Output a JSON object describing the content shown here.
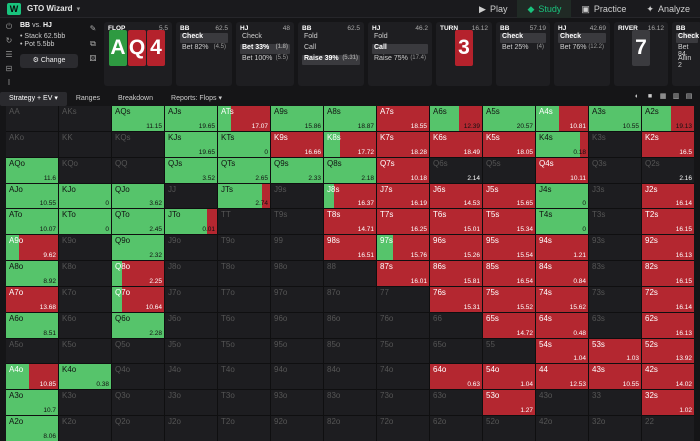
{
  "app": {
    "title": "GTO Wizard"
  },
  "nav": [
    {
      "label": "Play",
      "icon": "play-icon"
    },
    {
      "label": "Study",
      "icon": "study-icon",
      "active": true
    },
    {
      "label": "Practice",
      "icon": "practice-icon"
    },
    {
      "label": "Analyze",
      "icon": "analyze-icon"
    }
  ],
  "scenario": {
    "title_a": "BB",
    "title_vs": "vs.",
    "title_b": "HJ",
    "stack": "• Stack 62.5bb",
    "pot": "• Pot 5.5bb",
    "change_label": "Change"
  },
  "action_cards": [
    {
      "pos": "FLOP",
      "amount": "5.5"
    },
    {
      "pos": "BB",
      "amount": "62.5",
      "opts": [
        [
          "Check",
          ""
        ],
        [
          "Bet 82%",
          "(4.5)"
        ]
      ],
      "sel": 0
    },
    {
      "pos": "HJ",
      "amount": "48",
      "opts": [
        [
          "Check",
          ""
        ],
        [
          "Bet 33%",
          "(1.8)"
        ],
        [
          "Bet 100%",
          "(5.5)"
        ]
      ],
      "sel": 1
    },
    {
      "pos": "BB",
      "amount": "62.5",
      "opts": [
        [
          "Fold",
          ""
        ],
        [
          "Call",
          ""
        ],
        [
          "Raise 39%",
          "(5.31)"
        ]
      ],
      "sel": 2
    },
    {
      "pos": "HJ",
      "amount": "46.2",
      "opts": [
        [
          "Fold",
          ""
        ],
        [
          "Call",
          ""
        ],
        [
          "Raise 75%",
          "(17.4)"
        ]
      ],
      "sel": 1
    },
    {
      "pos": "TURN",
      "amount": "16.12"
    },
    {
      "pos": "BB",
      "amount": "57.19",
      "opts": [
        [
          "Check",
          ""
        ],
        [
          "Bet 25%",
          "(4)"
        ]
      ],
      "sel": 0
    },
    {
      "pos": "HJ",
      "amount": "42.69",
      "opts": [
        [
          "Check",
          ""
        ],
        [
          "Bet 76%",
          "(12.2)"
        ]
      ],
      "sel": 0
    },
    {
      "pos": "RIVER",
      "amount": "16.12"
    },
    {
      "pos": "BB",
      "amount": "",
      "opts": [
        [
          "Check",
          ""
        ],
        [
          "Bet 84",
          ""
        ],
        [
          "Allin 2",
          ""
        ]
      ],
      "sel": 0
    }
  ],
  "board": {
    "flop": [
      "A",
      "Q",
      "4"
    ],
    "turn": "3",
    "river": "7"
  },
  "tabs": [
    {
      "label": "Strategy + EV ▾",
      "active": true
    },
    {
      "label": "Ranges"
    },
    {
      "label": "Breakdown"
    },
    {
      "label": "Reports: Flops ▾"
    }
  ],
  "colors": {
    "check": "#56c46b",
    "bet": "#b42730",
    "empty": "#1d1d20",
    "accent": "#19c37d"
  },
  "matrix": [
    [
      [
        "AA",
        0,
        0,
        ""
      ],
      [
        "AKs",
        0,
        0,
        ""
      ],
      [
        "AQs",
        1,
        0,
        "11.15"
      ],
      [
        "AJs",
        1,
        0,
        "19.65"
      ],
      [
        "ATs",
        0.25,
        0.75,
        "17.07"
      ],
      [
        "A9s",
        1,
        0,
        "15.86"
      ],
      [
        "A8s",
        1,
        0,
        "18.87"
      ],
      [
        "A7s",
        0,
        1,
        "18.55"
      ],
      [
        "A6s",
        0.55,
        0.45,
        "12.39"
      ],
      [
        "A5s",
        1,
        0,
        "20.57"
      ],
      [
        "A4s",
        0.45,
        0.55,
        "10.81"
      ],
      [
        "A3s",
        1,
        0,
        "10.55"
      ],
      [
        "A2s",
        0.55,
        0.45,
        "19.13"
      ]
    ],
    [
      [
        "AKo",
        0,
        0,
        ""
      ],
      [
        "KK",
        0,
        0,
        ""
      ],
      [
        "KQs",
        0,
        0,
        ""
      ],
      [
        "KJs",
        1,
        0,
        "19.65"
      ],
      [
        "KTs",
        1,
        0,
        "0"
      ],
      [
        "K9s",
        0,
        1,
        "16.66"
      ],
      [
        "K8s",
        0.3,
        0.7,
        "17.72"
      ],
      [
        "K7s",
        0,
        1,
        "18.28"
      ],
      [
        "K6s",
        0,
        1,
        "18.49"
      ],
      [
        "K5s",
        0,
        1,
        "18.05"
      ],
      [
        "K4s",
        0.85,
        0.15,
        "0.18"
      ],
      [
        "K3s",
        0,
        0,
        ""
      ],
      [
        "K2s",
        0,
        1,
        "16.5"
      ]
    ],
    [
      [
        "AQo",
        1,
        0,
        "11.6"
      ],
      [
        "KQo",
        0,
        0,
        ""
      ],
      [
        "QQ",
        0,
        0,
        ""
      ],
      [
        "QJs",
        1,
        0,
        "3.52"
      ],
      [
        "QTs",
        1,
        0,
        "2.65"
      ],
      [
        "Q9s",
        1,
        0,
        "2.33"
      ],
      [
        "Q8s",
        1,
        0,
        "2.18"
      ],
      [
        "Q7s",
        0,
        1,
        "10.18"
      ],
      [
        "Q6s",
        0,
        0,
        "2.14"
      ],
      [
        "Q5s",
        0,
        0,
        ""
      ],
      [
        "Q4s",
        0,
        1,
        "10.11"
      ],
      [
        "Q3s",
        0,
        0,
        ""
      ],
      [
        "Q2s",
        0,
        0,
        "2.16"
      ]
    ],
    [
      [
        "AJo",
        1,
        0,
        "10.55"
      ],
      [
        "KJo",
        1,
        0,
        "0"
      ],
      [
        "QJo",
        1,
        0,
        "3.62"
      ],
      [
        "JJ",
        0,
        0,
        ""
      ],
      [
        "JTs",
        0.85,
        0.15,
        "2.74"
      ],
      [
        "J9s",
        0,
        0,
        ""
      ],
      [
        "J8s",
        0.2,
        0.8,
        "16.37"
      ],
      [
        "J7s",
        0,
        1,
        "16.19"
      ],
      [
        "J6s",
        0,
        1,
        "14.53"
      ],
      [
        "J5s",
        0,
        1,
        "15.65"
      ],
      [
        "J4s",
        1,
        0,
        "0"
      ],
      [
        "J3s",
        0,
        0,
        ""
      ],
      [
        "J2s",
        0,
        1,
        "16.14"
      ]
    ],
    [
      [
        "ATo",
        1,
        0,
        "10.07"
      ],
      [
        "KTo",
        1,
        0,
        "0"
      ],
      [
        "QTo",
        1,
        0,
        "2.45"
      ],
      [
        "JTo",
        0.8,
        0.2,
        "0.01"
      ],
      [
        "TT",
        0,
        0,
        ""
      ],
      [
        "T9s",
        0,
        0,
        ""
      ],
      [
        "T8s",
        0,
        1,
        "14.71"
      ],
      [
        "T7s",
        0,
        1,
        "16.25"
      ],
      [
        "T6s",
        0,
        1,
        "15.01"
      ],
      [
        "T5s",
        0,
        1,
        "15.34"
      ],
      [
        "T4s",
        1,
        0,
        "0"
      ],
      [
        "T3s",
        0,
        0,
        ""
      ],
      [
        "T2s",
        0,
        1,
        "16.15"
      ]
    ],
    [
      [
        "A9o",
        0.25,
        0.75,
        "9.62"
      ],
      [
        "K9o",
        0,
        0,
        ""
      ],
      [
        "Q9o",
        1,
        0,
        "2.32"
      ],
      [
        "J9o",
        0,
        0,
        ""
      ],
      [
        "T9o",
        0,
        0,
        ""
      ],
      [
        "99",
        0,
        0,
        ""
      ],
      [
        "98s",
        0,
        1,
        "16.51"
      ],
      [
        "97s",
        0.3,
        0.7,
        "15.76"
      ],
      [
        "96s",
        0,
        1,
        "15.26"
      ],
      [
        "95s",
        0,
        1,
        "15.54"
      ],
      [
        "94s",
        0,
        1,
        "1.21"
      ],
      [
        "93s",
        0,
        0,
        ""
      ],
      [
        "92s",
        0,
        1,
        "16.13"
      ]
    ],
    [
      [
        "A8o",
        1,
        0,
        "8.92"
      ],
      [
        "K8o",
        0,
        0,
        ""
      ],
      [
        "Q8o",
        0.2,
        0.8,
        "2.25"
      ],
      [
        "J8o",
        0,
        0,
        ""
      ],
      [
        "T8o",
        0,
        0,
        ""
      ],
      [
        "98o",
        0,
        0,
        ""
      ],
      [
        "88",
        0,
        0,
        ""
      ],
      [
        "87s",
        0,
        1,
        "16.01"
      ],
      [
        "86s",
        0,
        1,
        "15.81"
      ],
      [
        "85s",
        0,
        1,
        "16.54"
      ],
      [
        "84s",
        0,
        1,
        "0.84"
      ],
      [
        "83s",
        0,
        0,
        ""
      ],
      [
        "82s",
        0,
        1,
        "16.15"
      ]
    ],
    [
      [
        "A7o",
        0,
        1,
        "13.68"
      ],
      [
        "K7o",
        0,
        0,
        ""
      ],
      [
        "Q7o",
        0.2,
        0.8,
        "10.64"
      ],
      [
        "J7o",
        0,
        0,
        ""
      ],
      [
        "T7o",
        0,
        0,
        ""
      ],
      [
        "97o",
        0,
        0,
        ""
      ],
      [
        "87o",
        0,
        0,
        ""
      ],
      [
        "77",
        0,
        0,
        ""
      ],
      [
        "76s",
        0,
        1,
        "15.31"
      ],
      [
        "75s",
        0,
        1,
        "15.52"
      ],
      [
        "74s",
        0,
        1,
        "15.62"
      ],
      [
        "73s",
        0,
        0,
        ""
      ],
      [
        "72s",
        0,
        1,
        "16.14"
      ]
    ],
    [
      [
        "A6o",
        1,
        0,
        "8.51"
      ],
      [
        "K6o",
        0,
        0,
        ""
      ],
      [
        "Q6o",
        1,
        0,
        "2.28"
      ],
      [
        "J6o",
        0,
        0,
        ""
      ],
      [
        "T6o",
        0,
        0,
        ""
      ],
      [
        "96o",
        0,
        0,
        ""
      ],
      [
        "86o",
        0,
        0,
        ""
      ],
      [
        "76o",
        0,
        0,
        ""
      ],
      [
        "66",
        0,
        0,
        ""
      ],
      [
        "65s",
        0,
        1,
        "14.72"
      ],
      [
        "64s",
        0,
        1,
        "0.48"
      ],
      [
        "63s",
        0,
        0,
        ""
      ],
      [
        "62s",
        0,
        1,
        "16.13"
      ]
    ],
    [
      [
        "A5o",
        0,
        0,
        ""
      ],
      [
        "K5o",
        0,
        0,
        ""
      ],
      [
        "Q5o",
        0,
        0,
        ""
      ],
      [
        "J5o",
        0,
        0,
        ""
      ],
      [
        "T5o",
        0,
        0,
        ""
      ],
      [
        "95o",
        0,
        0,
        ""
      ],
      [
        "85o",
        0,
        0,
        ""
      ],
      [
        "75o",
        0,
        0,
        ""
      ],
      [
        "65o",
        0,
        0,
        ""
      ],
      [
        "55",
        0,
        0,
        ""
      ],
      [
        "54s",
        0,
        1,
        "1.04"
      ],
      [
        "53s",
        0,
        1,
        "1.03"
      ],
      [
        "52s",
        0,
        1,
        "13.92"
      ]
    ],
    [
      [
        "A4o",
        0.45,
        0.55,
        "10.85"
      ],
      [
        "K4o",
        1,
        0,
        "0.38"
      ],
      [
        "Q4o",
        0,
        0,
        ""
      ],
      [
        "J4o",
        0,
        0,
        ""
      ],
      [
        "T4o",
        0,
        0,
        ""
      ],
      [
        "94o",
        0,
        0,
        ""
      ],
      [
        "84o",
        0,
        0,
        ""
      ],
      [
        "74o",
        0,
        0,
        ""
      ],
      [
        "64o",
        0,
        1,
        "0.63"
      ],
      [
        "54o",
        0,
        1,
        "1.04"
      ],
      [
        "44",
        0,
        1,
        "12.53"
      ],
      [
        "43s",
        0,
        1,
        "10.55"
      ],
      [
        "42s",
        0,
        1,
        "14.02"
      ]
    ],
    [
      [
        "A3o",
        1,
        0,
        "10.7"
      ],
      [
        "K3o",
        0,
        0,
        ""
      ],
      [
        "Q3o",
        0,
        0,
        ""
      ],
      [
        "J3o",
        0,
        0,
        ""
      ],
      [
        "T3o",
        0,
        0,
        ""
      ],
      [
        "93o",
        0,
        0,
        ""
      ],
      [
        "83o",
        0,
        0,
        ""
      ],
      [
        "73o",
        0,
        0,
        ""
      ],
      [
        "63o",
        0,
        0,
        ""
      ],
      [
        "53o",
        0,
        1,
        "1.27"
      ],
      [
        "43o",
        0,
        0,
        ""
      ],
      [
        "33",
        0,
        0,
        ""
      ],
      [
        "32s",
        0,
        1,
        "1.02"
      ]
    ],
    [
      [
        "A2o",
        1,
        0,
        "8.06"
      ],
      [
        "K2o",
        0,
        0,
        ""
      ],
      [
        "Q2o",
        0,
        0,
        ""
      ],
      [
        "J2o",
        0,
        0,
        ""
      ],
      [
        "T2o",
        0,
        0,
        ""
      ],
      [
        "92o",
        0,
        0,
        ""
      ],
      [
        "82o",
        0,
        0,
        ""
      ],
      [
        "72o",
        0,
        0,
        ""
      ],
      [
        "62o",
        0,
        0,
        ""
      ],
      [
        "52o",
        0,
        0,
        ""
      ],
      [
        "42o",
        0,
        0,
        ""
      ],
      [
        "32o",
        0,
        0,
        ""
      ],
      [
        "22",
        0,
        0,
        ""
      ]
    ]
  ]
}
